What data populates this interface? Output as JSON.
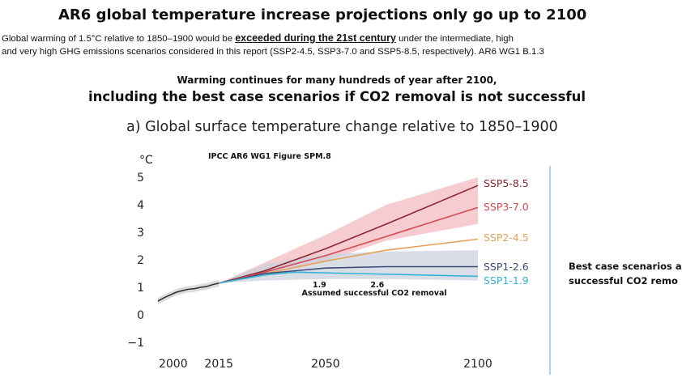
{
  "header": {
    "headline": "AR6 global temperature increase projections only go up to 2100",
    "intro_line1_pre": "Global warming of 1.5°C relative to 1850–1900 would be ",
    "intro_line1_emph": "exceeded during the 21st century",
    "intro_line1_post": " under the intermediate, high",
    "intro_line2": "and very high GHG emissions scenarios considered in this report (SSP2-4.5, SSP3-7.0 and SSP5-8.5, respectively). AR6 WG1 B.1.3",
    "subheading1": "Warming continues for many hundreds of year after 2100,",
    "subheading2": "including the best case scenarios if CO2 removal is not successful",
    "panel_title": "a) Global surface temperature change relative to 1850–1900"
  },
  "side_note": {
    "line1": "Best case scenarios a",
    "line2": "successful CO2 remo"
  },
  "chart_data": {
    "type": "line",
    "source_label": "IPCC AR6 WG1 Figure SPM.8",
    "ylabel": "°C",
    "xlim": [
      1995,
      2100
    ],
    "ylim": [
      -1,
      5
    ],
    "x_ticks": [
      {
        "value": 2000,
        "label": "2000"
      },
      {
        "value": 2015,
        "label": "2015"
      },
      {
        "value": 2050,
        "label": "2050"
      },
      {
        "value": 2100,
        "label": "2100"
      }
    ],
    "y_ticks": [
      {
        "value": 5,
        "label": "5"
      },
      {
        "value": 4,
        "label": "4"
      },
      {
        "value": 3,
        "label": "3"
      },
      {
        "value": 2,
        "label": "2"
      },
      {
        "value": 1,
        "label": "1"
      },
      {
        "value": 0,
        "label": "0"
      },
      {
        "value": -1,
        "label": "−1"
      }
    ],
    "historical": {
      "color": "#333333",
      "x": [
        1995,
        1997,
        1999,
        2001,
        2003,
        2005,
        2007,
        2009,
        2011,
        2013,
        2015
      ],
      "y": [
        0.5,
        0.62,
        0.72,
        0.82,
        0.88,
        0.93,
        0.95,
        1.0,
        1.03,
        1.1,
        1.15
      ]
    },
    "series": [
      {
        "name": "SSP5-8.5",
        "color": "#8b2633",
        "x": [
          2015,
          2030,
          2050,
          2070,
          2100
        ],
        "y": [
          1.15,
          1.6,
          2.4,
          3.3,
          4.7
        ],
        "band_low": [
          1.15,
          1.4,
          1.95,
          2.7,
          3.3
        ],
        "band_high": [
          1.15,
          1.9,
          2.9,
          4.0,
          5.0
        ]
      },
      {
        "name": "SSP3-7.0",
        "color": "#d24a53",
        "x": [
          2015,
          2030,
          2050,
          2070,
          2100
        ],
        "y": [
          1.15,
          1.55,
          2.15,
          2.85,
          3.9
        ]
      },
      {
        "name": "SSP2-4.5",
        "color": "#e3a25a",
        "x": [
          2015,
          2030,
          2050,
          2070,
          2100
        ],
        "y": [
          1.15,
          1.5,
          1.95,
          2.35,
          2.75
        ]
      },
      {
        "name": "SSP1-2.6",
        "color": "#3d4a7a",
        "x": [
          2015,
          2030,
          2050,
          2070,
          2100
        ],
        "y": [
          1.15,
          1.5,
          1.7,
          1.75,
          1.75
        ],
        "band_low": [
          1.15,
          1.25,
          1.3,
          1.3,
          1.25
        ],
        "band_high": [
          1.15,
          1.85,
          2.2,
          2.3,
          2.35
        ]
      },
      {
        "name": "SSP1-1.9",
        "color": "#33b3d6",
        "x": [
          2015,
          2030,
          2040,
          2060,
          2100
        ],
        "y": [
          1.15,
          1.45,
          1.55,
          1.5,
          1.4
        ]
      }
    ],
    "annotations": [
      {
        "text": "1.9",
        "x": 2048,
        "y": 1.0
      },
      {
        "text": "2.6",
        "x": 2067,
        "y": 1.0
      },
      {
        "text": "Assumed successful CO2 removal",
        "x": 2066,
        "y": 0.7
      }
    ],
    "grid": false
  }
}
